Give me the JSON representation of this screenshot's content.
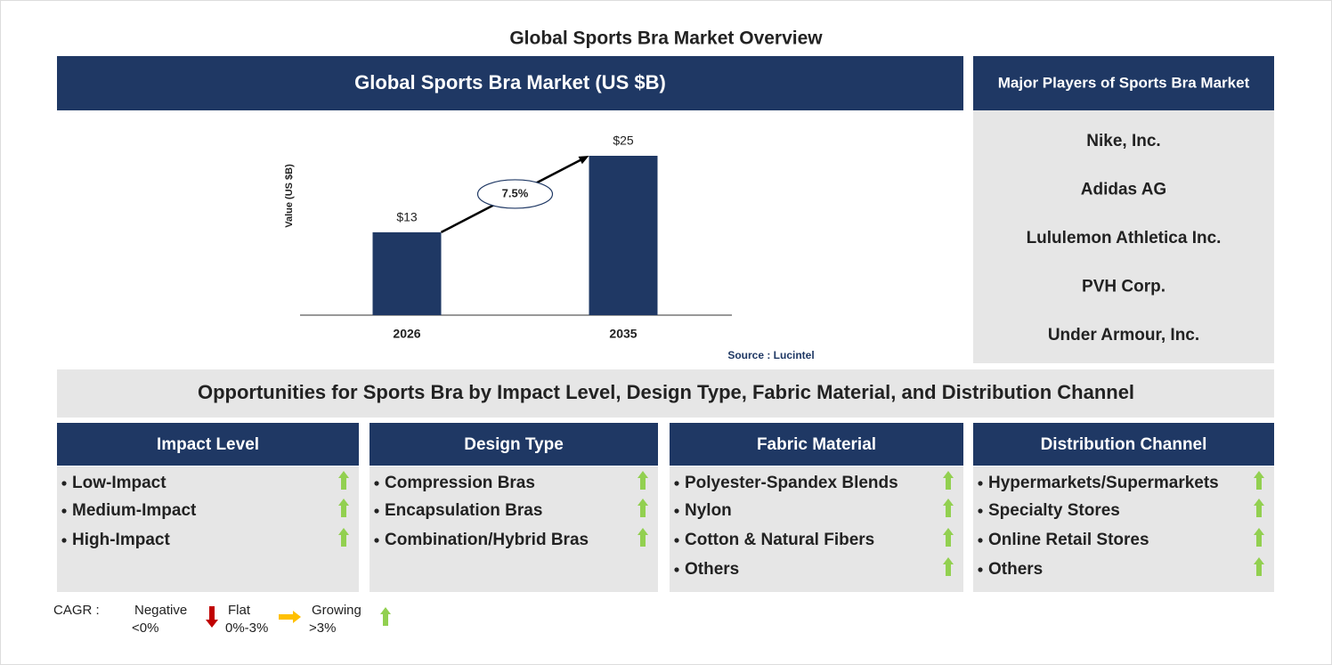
{
  "title": "Global Sports Bra Market Overview",
  "chart_data": {
    "type": "bar",
    "title": "Global Sports Bra Market (US $B)",
    "y_label": "Value (US $B)",
    "categories": [
      "2026",
      "2035"
    ],
    "values": [
      13,
      25
    ],
    "value_labels": [
      "$13",
      "$25"
    ],
    "color": "#1f3864",
    "annotation": "7.5%",
    "source": "Source : Lucintel"
  },
  "players": {
    "title": "Major Players of Sports Bra Market",
    "items": [
      "Nike, Inc.",
      "Adidas AG",
      "Lululemon Athletica Inc.",
      "PVH Corp.",
      "Under Armour, Inc."
    ]
  },
  "opportunities": {
    "title": "Opportunities for Sports Bra by Impact Level, Design Type, Fabric Material, and Distribution Channel",
    "segments": [
      {
        "title": "Impact Level",
        "items": [
          {
            "label": "Low-Impact",
            "trend": "growing"
          },
          {
            "label": "Medium-Impact",
            "trend": "growing"
          },
          {
            "label": "High-Impact",
            "trend": "growing"
          }
        ]
      },
      {
        "title": "Design Type",
        "items": [
          {
            "label": "Compression Bras",
            "trend": "growing"
          },
          {
            "label": "Encapsulation Bras",
            "trend": "growing"
          },
          {
            "label": "Combination/Hybrid Bras",
            "trend": "growing"
          }
        ]
      },
      {
        "title": "Fabric Material",
        "items": [
          {
            "label": "Polyester-Spandex Blends",
            "trend": "growing"
          },
          {
            "label": "Nylon",
            "trend": "growing"
          },
          {
            "label": "Cotton & Natural Fibers",
            "trend": "growing"
          },
          {
            "label": "Others",
            "trend": "growing"
          }
        ]
      },
      {
        "title": "Distribution Channel",
        "items": [
          {
            "label": "Hypermarkets/Supermarkets",
            "trend": "growing"
          },
          {
            "label": "Specialty Stores",
            "trend": "growing"
          },
          {
            "label": "Online Retail Stores",
            "trend": "growing"
          },
          {
            "label": "Others",
            "trend": "growing"
          }
        ]
      }
    ]
  },
  "legend": {
    "label": "CAGR :",
    "entries": [
      {
        "name": "Negative",
        "range": "<0%",
        "trend": "negative"
      },
      {
        "name": "Flat",
        "range": "0%-3%",
        "trend": "flat"
      },
      {
        "name": "Growing",
        "range": ">3%",
        "trend": "growing"
      }
    ]
  }
}
